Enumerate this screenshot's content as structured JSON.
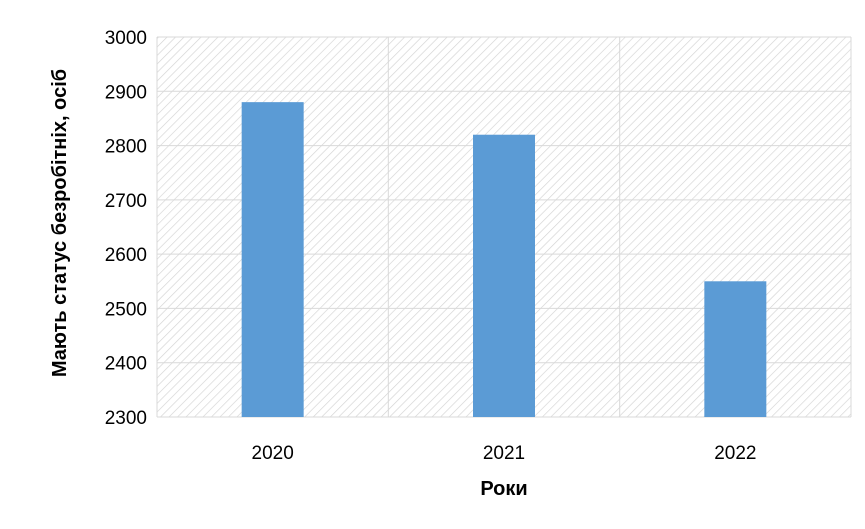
{
  "chart_data": {
    "type": "bar",
    "title": "",
    "xlabel": "Роки",
    "ylabel": "Мають статус безробітніх, осіб",
    "categories": [
      "2020",
      "2021",
      "2022"
    ],
    "values": [
      2880,
      2820,
      2550
    ],
    "ylim": [
      2300,
      3000
    ],
    "yticks": [
      "2300",
      "2400",
      "2500",
      "2600",
      "2700",
      "2800",
      "2900",
      "3000"
    ],
    "grid": true,
    "legend": "none",
    "colors": {
      "bar": "#5b9bd5",
      "grid": "#d9d9d9",
      "hatch": "#d3d3d3",
      "background": "#ffffff"
    }
  }
}
